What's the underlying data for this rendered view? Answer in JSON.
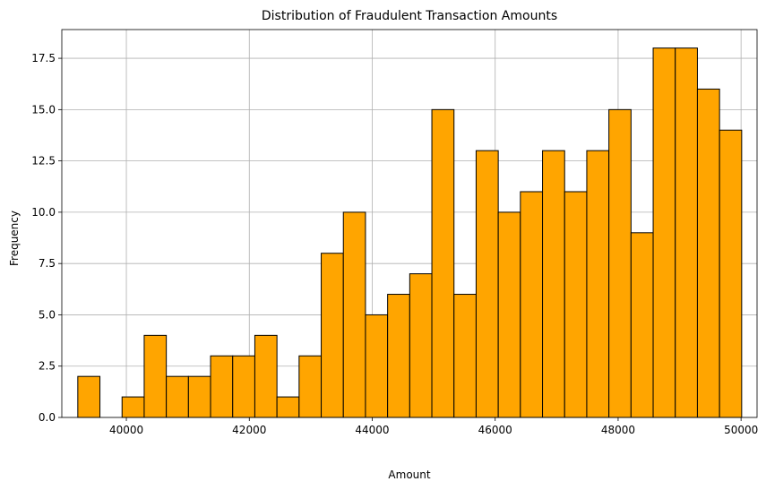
{
  "chart_data": {
    "type": "bar",
    "title": "Distribution of Fraudulent Transaction Amounts",
    "xlabel": "Amount",
    "ylabel": "Frequency",
    "xlim": [
      38950,
      50260
    ],
    "ylim": [
      0,
      18.9
    ],
    "xticks": [
      40000,
      42000,
      44000,
      46000,
      48000,
      50000
    ],
    "xtick_labels": [
      "40000",
      "42000",
      "44000",
      "46000",
      "48000",
      "50000"
    ],
    "yticks": [
      0.0,
      2.5,
      5.0,
      7.5,
      10.0,
      12.5,
      15.0,
      17.5
    ],
    "ytick_labels": [
      "0.0",
      "2.5",
      "5.0",
      "7.5",
      "10.0",
      "12.5",
      "15.0",
      "17.5"
    ],
    "grid": true,
    "bar_color": "#FFA500",
    "edge_color": "#000000",
    "bins": [
      {
        "x0": 39210,
        "x1": 39570,
        "count": 2
      },
      {
        "x0": 39570,
        "x1": 39930,
        "count": 0
      },
      {
        "x0": 39930,
        "x1": 40290,
        "count": 1
      },
      {
        "x0": 40290,
        "x1": 40650,
        "count": 4
      },
      {
        "x0": 40650,
        "x1": 41010,
        "count": 2
      },
      {
        "x0": 41010,
        "x1": 41370,
        "count": 2
      },
      {
        "x0": 41370,
        "x1": 41730,
        "count": 3
      },
      {
        "x0": 41730,
        "x1": 42090,
        "count": 3
      },
      {
        "x0": 42090,
        "x1": 42450,
        "count": 4
      },
      {
        "x0": 42450,
        "x1": 42810,
        "count": 1
      },
      {
        "x0": 42810,
        "x1": 43170,
        "count": 3
      },
      {
        "x0": 43170,
        "x1": 43530,
        "count": 8
      },
      {
        "x0": 43530,
        "x1": 43890,
        "count": 10
      },
      {
        "x0": 43890,
        "x1": 44250,
        "count": 5
      },
      {
        "x0": 44250,
        "x1": 44610,
        "count": 6
      },
      {
        "x0": 44610,
        "x1": 44970,
        "count": 7
      },
      {
        "x0": 44970,
        "x1": 45330,
        "count": 15
      },
      {
        "x0": 45330,
        "x1": 45690,
        "count": 6
      },
      {
        "x0": 45690,
        "x1": 46050,
        "count": 13
      },
      {
        "x0": 46050,
        "x1": 46410,
        "count": 10
      },
      {
        "x0": 46410,
        "x1": 46770,
        "count": 11
      },
      {
        "x0": 46770,
        "x1": 47130,
        "count": 13
      },
      {
        "x0": 47130,
        "x1": 47490,
        "count": 11
      },
      {
        "x0": 47490,
        "x1": 47850,
        "count": 13
      },
      {
        "x0": 47850,
        "x1": 48210,
        "count": 15
      },
      {
        "x0": 48210,
        "x1": 48570,
        "count": 9
      },
      {
        "x0": 48570,
        "x1": 48930,
        "count": 18
      },
      {
        "x0": 48930,
        "x1": 49290,
        "count": 18
      },
      {
        "x0": 49290,
        "x1": 49650,
        "count": 16
      },
      {
        "x0": 49650,
        "x1": 50010,
        "count": 14
      }
    ]
  }
}
